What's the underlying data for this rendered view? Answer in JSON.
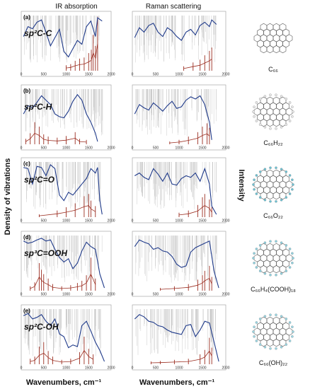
{
  "headers": {
    "ir": "IR absorption",
    "raman": "Raman scattering"
  },
  "axes": {
    "ylabel_left": "Density of vibrations",
    "ylabel_right": "Intensity",
    "xlabel": "Wavenumbers, cm⁻¹",
    "xticks": [
      "0",
      "500",
      "1000",
      "1500",
      "2000"
    ]
  },
  "colors": {
    "envelope": "#1f3a8a",
    "dos": "#9b2d20",
    "lines": "#b5b5b5"
  },
  "rows": [
    {
      "panel": "(a)",
      "bond": "sp²C-C",
      "molecule": "C₆₆",
      "structure_icon": "graphene-flake-icon"
    },
    {
      "panel": "(b)",
      "bond": "sp²C-H",
      "molecule": "C₆₆H₂₂",
      "structure_icon": "hydrogenated-flake-icon"
    },
    {
      "panel": "(c)",
      "bond": "sp²C=O",
      "molecule": "C₆₆O₂₂",
      "structure_icon": "oxidized-flake-icon"
    },
    {
      "panel": "(d)",
      "bond": "sp³C=OOH",
      "molecule": "C₆₆H₄(COOH)₁₈",
      "structure_icon": "carboxylated-flake-icon"
    },
    {
      "panel": "(e)",
      "bond": "sp²C-OH",
      "molecule": "C₆₆(OH)₂₂",
      "structure_icon": "hydroxylated-flake-icon"
    }
  ],
  "chart_data": {
    "type": "line",
    "x_range": [
      0,
      2000
    ],
    "x_ticks": [
      0,
      500,
      1000,
      1500,
      2000
    ],
    "xlabel": "Wavenumbers, cm⁻¹",
    "ylabel_left": "Density of vibrations",
    "ylabel_right": "Intensity",
    "columns": [
      "IR absorption",
      "Raman scattering"
    ],
    "panels": [
      {
        "row": 0,
        "col": 0,
        "envelope": [
          [
            50,
            0.62
          ],
          [
            150,
            0.8
          ],
          [
            250,
            0.76
          ],
          [
            350,
            0.88
          ],
          [
            450,
            0.92
          ],
          [
            550,
            0.7
          ],
          [
            650,
            0.45
          ],
          [
            750,
            0.6
          ],
          [
            850,
            0.75
          ],
          [
            950,
            0.35
          ],
          [
            1050,
            0.25
          ],
          [
            1150,
            0.4
          ],
          [
            1250,
            0.55
          ],
          [
            1350,
            0.48
          ],
          [
            1450,
            0.8
          ],
          [
            1550,
            0.9
          ],
          [
            1650,
            0.62
          ],
          [
            1700,
            0.96
          ],
          [
            1800,
            0.9
          ]
        ],
        "dos_peaks": [
          [
            1000,
            0.1
          ],
          [
            1100,
            0.12
          ],
          [
            1200,
            0.18
          ],
          [
            1300,
            0.22
          ],
          [
            1400,
            0.24
          ],
          [
            1500,
            0.32
          ],
          [
            1560,
            0.38
          ],
          [
            1600,
            0.65
          ],
          [
            1650,
            0.45
          ],
          [
            1700,
            0.98
          ]
        ]
      },
      {
        "row": 0,
        "col": 1,
        "envelope": [
          [
            50,
            0.6
          ],
          [
            150,
            0.78
          ],
          [
            250,
            0.7
          ],
          [
            350,
            0.82
          ],
          [
            450,
            0.86
          ],
          [
            550,
            0.7
          ],
          [
            650,
            0.62
          ],
          [
            750,
            0.78
          ],
          [
            850,
            0.72
          ],
          [
            950,
            0.62
          ],
          [
            1050,
            0.55
          ],
          [
            1150,
            0.7
          ],
          [
            1250,
            0.75
          ],
          [
            1350,
            0.65
          ],
          [
            1450,
            0.82
          ],
          [
            1550,
            0.88
          ],
          [
            1650,
            0.8
          ],
          [
            1700,
            0.92
          ],
          [
            1800,
            0.84
          ]
        ],
        "dos_peaks": [
          [
            1100,
            0.08
          ],
          [
            1300,
            0.15
          ],
          [
            1450,
            0.2
          ],
          [
            1550,
            0.28
          ],
          [
            1650,
            0.36
          ],
          [
            1700,
            0.42
          ]
        ]
      },
      {
        "row": 1,
        "col": 0,
        "envelope": [
          [
            50,
            0.55
          ],
          [
            150,
            0.7
          ],
          [
            250,
            0.66
          ],
          [
            350,
            0.76
          ],
          [
            450,
            0.88
          ],
          [
            550,
            0.8
          ],
          [
            650,
            0.72
          ],
          [
            750,
            0.55
          ],
          [
            850,
            0.5
          ],
          [
            950,
            0.48
          ],
          [
            1050,
            0.6
          ],
          [
            1150,
            0.78
          ],
          [
            1250,
            0.9
          ],
          [
            1350,
            0.8
          ],
          [
            1450,
            0.55
          ],
          [
            1550,
            0.4
          ],
          [
            1650,
            0.2
          ],
          [
            1700,
            0.05
          ]
        ],
        "dos_peaks": [
          [
            100,
            0.1
          ],
          [
            200,
            0.2
          ],
          [
            300,
            0.4
          ],
          [
            400,
            0.32
          ],
          [
            500,
            0.18
          ],
          [
            600,
            0.14
          ],
          [
            800,
            0.12
          ],
          [
            1000,
            0.15
          ],
          [
            1200,
            0.22
          ],
          [
            1300,
            0.1
          ],
          [
            1450,
            0.08
          ]
        ]
      },
      {
        "row": 1,
        "col": 1,
        "envelope": [
          [
            50,
            0.55
          ],
          [
            150,
            0.72
          ],
          [
            250,
            0.66
          ],
          [
            350,
            0.62
          ],
          [
            450,
            0.75
          ],
          [
            550,
            0.68
          ],
          [
            650,
            0.6
          ],
          [
            750,
            0.7
          ],
          [
            850,
            0.78
          ],
          [
            950,
            0.65
          ],
          [
            1050,
            0.68
          ],
          [
            1150,
            0.8
          ],
          [
            1250,
            0.86
          ],
          [
            1350,
            0.82
          ],
          [
            1450,
            0.88
          ],
          [
            1550,
            0.72
          ],
          [
            1650,
            0.4
          ],
          [
            1700,
            0.08
          ]
        ],
        "dos_peaks": [
          [
            800,
            0.05
          ],
          [
            1000,
            0.08
          ],
          [
            1200,
            0.14
          ],
          [
            1400,
            0.22
          ],
          [
            1500,
            0.32
          ],
          [
            1600,
            0.38
          ],
          [
            1650,
            0.3
          ]
        ]
      },
      {
        "row": 2,
        "col": 0,
        "envelope": [
          [
            50,
            0.9
          ],
          [
            150,
            0.88
          ],
          [
            250,
            0.6
          ],
          [
            350,
            0.92
          ],
          [
            450,
            0.9
          ],
          [
            550,
            0.75
          ],
          [
            650,
            0.95
          ],
          [
            750,
            0.88
          ],
          [
            850,
            0.4
          ],
          [
            950,
            0.3
          ],
          [
            1050,
            0.45
          ],
          [
            1150,
            0.4
          ],
          [
            1250,
            0.5
          ],
          [
            1350,
            0.6
          ],
          [
            1450,
            0.7
          ],
          [
            1550,
            0.88
          ],
          [
            1650,
            0.8
          ],
          [
            1700,
            0.9
          ],
          [
            1750,
            0.3
          ],
          [
            1800,
            0.05
          ]
        ],
        "dos_peaks": [
          [
            400,
            0.05
          ],
          [
            800,
            0.12
          ],
          [
            1000,
            0.18
          ],
          [
            1200,
            0.25
          ],
          [
            1400,
            0.38
          ],
          [
            1500,
            0.42
          ],
          [
            1550,
            0.3
          ],
          [
            1650,
            0.2
          ]
        ]
      },
      {
        "row": 2,
        "col": 1,
        "envelope": [
          [
            50,
            0.75
          ],
          [
            150,
            0.8
          ],
          [
            250,
            0.72
          ],
          [
            350,
            0.68
          ],
          [
            450,
            0.88
          ],
          [
            550,
            0.78
          ],
          [
            650,
            0.65
          ],
          [
            750,
            0.8
          ],
          [
            850,
            0.6
          ],
          [
            950,
            0.58
          ],
          [
            1050,
            0.7
          ],
          [
            1150,
            0.75
          ],
          [
            1250,
            0.72
          ],
          [
            1350,
            0.8
          ],
          [
            1450,
            0.65
          ],
          [
            1550,
            0.88
          ],
          [
            1650,
            0.6
          ],
          [
            1700,
            0.2
          ],
          [
            1800,
            0.05
          ]
        ],
        "dos_peaks": [
          [
            1000,
            0.08
          ],
          [
            1200,
            0.12
          ],
          [
            1400,
            0.22
          ],
          [
            1500,
            0.36
          ],
          [
            1550,
            0.42
          ],
          [
            1650,
            0.32
          ],
          [
            1700,
            0.18
          ]
        ]
      },
      {
        "row": 3,
        "col": 0,
        "envelope": [
          [
            50,
            0.9
          ],
          [
            150,
            0.86
          ],
          [
            250,
            0.88
          ],
          [
            350,
            0.92
          ],
          [
            450,
            0.95
          ],
          [
            550,
            0.9
          ],
          [
            650,
            0.92
          ],
          [
            750,
            0.75
          ],
          [
            850,
            0.6
          ],
          [
            950,
            0.52
          ],
          [
            1050,
            0.58
          ],
          [
            1150,
            0.4
          ],
          [
            1250,
            0.5
          ],
          [
            1350,
            0.72
          ],
          [
            1450,
            0.88
          ],
          [
            1550,
            0.8
          ],
          [
            1650,
            0.75
          ],
          [
            1750,
            0.3
          ],
          [
            1850,
            0.05
          ]
        ],
        "dos_peaks": [
          [
            200,
            0.08
          ],
          [
            300,
            0.15
          ],
          [
            400,
            0.5
          ],
          [
            450,
            0.38
          ],
          [
            500,
            0.3
          ],
          [
            600,
            0.22
          ],
          [
            700,
            0.12
          ],
          [
            900,
            0.08
          ],
          [
            1100,
            0.1
          ],
          [
            1250,
            0.14
          ],
          [
            1350,
            0.18
          ],
          [
            1450,
            0.28
          ],
          [
            1550,
            0.6
          ],
          [
            1650,
            0.22
          ]
        ]
      },
      {
        "row": 3,
        "col": 1,
        "envelope": [
          [
            50,
            0.8
          ],
          [
            150,
            0.92
          ],
          [
            250,
            0.88
          ],
          [
            350,
            0.85
          ],
          [
            450,
            0.75
          ],
          [
            550,
            0.78
          ],
          [
            650,
            0.72
          ],
          [
            750,
            0.7
          ],
          [
            850,
            0.62
          ],
          [
            950,
            0.48
          ],
          [
            1050,
            0.42
          ],
          [
            1150,
            0.45
          ],
          [
            1250,
            0.7
          ],
          [
            1350,
            0.78
          ],
          [
            1450,
            0.82
          ],
          [
            1550,
            0.86
          ],
          [
            1650,
            0.9
          ],
          [
            1750,
            0.35
          ],
          [
            1850,
            0.05
          ]
        ],
        "dos_peaks": [
          [
            600,
            0.05
          ],
          [
            900,
            0.08
          ],
          [
            1200,
            0.12
          ],
          [
            1400,
            0.2
          ],
          [
            1500,
            0.28
          ],
          [
            1550,
            0.36
          ],
          [
            1650,
            0.45
          ],
          [
            1700,
            0.25
          ]
        ]
      },
      {
        "row": 4,
        "col": 0,
        "envelope": [
          [
            50,
            0.88
          ],
          [
            150,
            0.92
          ],
          [
            250,
            0.82
          ],
          [
            350,
            0.85
          ],
          [
            450,
            0.9
          ],
          [
            550,
            0.78
          ],
          [
            650,
            0.7
          ],
          [
            750,
            0.82
          ],
          [
            850,
            0.55
          ],
          [
            950,
            0.5
          ],
          [
            1050,
            0.3
          ],
          [
            1150,
            0.35
          ],
          [
            1250,
            0.32
          ],
          [
            1350,
            0.7
          ],
          [
            1450,
            0.78
          ],
          [
            1550,
            0.6
          ],
          [
            1650,
            0.4
          ],
          [
            1750,
            0.25
          ],
          [
            1850,
            0.05
          ]
        ],
        "dos_peaks": [
          [
            200,
            0.1
          ],
          [
            300,
            0.14
          ],
          [
            400,
            0.32
          ],
          [
            500,
            0.4
          ],
          [
            600,
            0.24
          ],
          [
            700,
            0.14
          ],
          [
            900,
            0.08
          ],
          [
            1100,
            0.1
          ],
          [
            1300,
            0.22
          ],
          [
            1400,
            0.5
          ],
          [
            1500,
            0.28
          ],
          [
            1600,
            0.18
          ]
        ]
      },
      {
        "row": 4,
        "col": 1,
        "envelope": [
          [
            50,
            0.82
          ],
          [
            150,
            0.9
          ],
          [
            250,
            0.86
          ],
          [
            350,
            0.78
          ],
          [
            450,
            0.76
          ],
          [
            550,
            0.7
          ],
          [
            650,
            0.68
          ],
          [
            750,
            0.62
          ],
          [
            850,
            0.58
          ],
          [
            950,
            0.56
          ],
          [
            1050,
            0.54
          ],
          [
            1150,
            0.7
          ],
          [
            1250,
            0.72
          ],
          [
            1350,
            0.5
          ],
          [
            1450,
            0.62
          ],
          [
            1550,
            0.78
          ],
          [
            1650,
            0.75
          ],
          [
            1750,
            0.4
          ],
          [
            1850,
            0.05
          ]
        ],
        "dos_peaks": [
          [
            400,
            0.05
          ],
          [
            600,
            0.06
          ],
          [
            900,
            0.08
          ],
          [
            1200,
            0.1
          ],
          [
            1450,
            0.18
          ],
          [
            1550,
            0.26
          ],
          [
            1650,
            0.48
          ],
          [
            1700,
            0.3
          ]
        ]
      }
    ]
  }
}
